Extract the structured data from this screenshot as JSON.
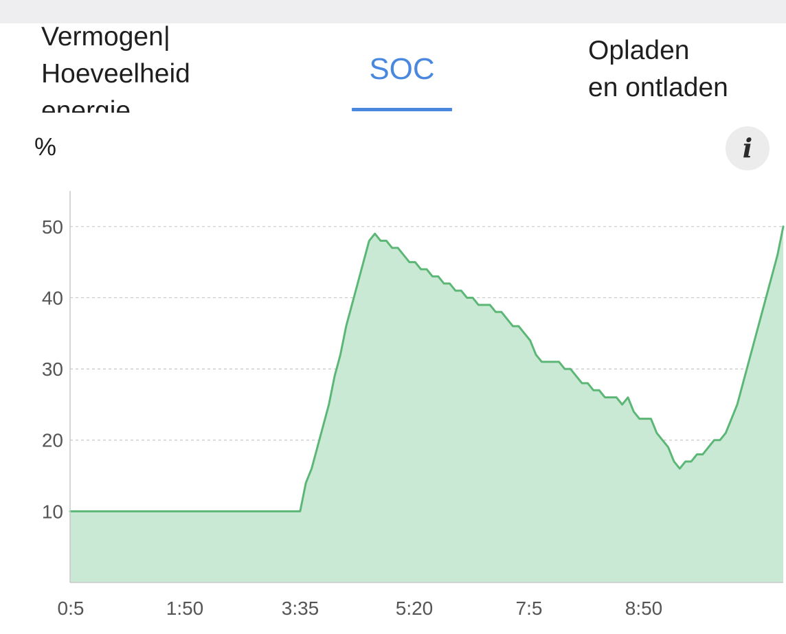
{
  "tabs": [
    {
      "label": "Vermogen|\nHoeveelheid\nenergie",
      "active": false
    },
    {
      "label": "SOC",
      "active": true
    },
    {
      "label": "Opladen\nen ontladen",
      "active": false
    }
  ],
  "unit": "%",
  "info_icon": "info-icon",
  "colors": {
    "active_tab": "#4a88e0",
    "line": "#5cb776",
    "area": "#c9e9d4",
    "grid": "#c8c8c8"
  },
  "chart_data": {
    "type": "area",
    "title": "",
    "xlabel": "",
    "ylabel": "%",
    "x_tick_labels": [
      "0:5",
      "1:50",
      "3:35",
      "5:20",
      "7:5",
      "8:50"
    ],
    "y_ticks": [
      10,
      20,
      30,
      40,
      50
    ],
    "ylim": [
      0,
      55
    ],
    "grid": "horizontal dashed",
    "series": [
      {
        "values": [
          10,
          10,
          10,
          10,
          10,
          10,
          10,
          10,
          10,
          10,
          10,
          10,
          10,
          10,
          10,
          10,
          10,
          10,
          10,
          10,
          10,
          10,
          10,
          10,
          10,
          10,
          10,
          10,
          10,
          10,
          10,
          10,
          10,
          10,
          10,
          10,
          10,
          10,
          10,
          10,
          10,
          14,
          16,
          19,
          22,
          25,
          29,
          32,
          36,
          39,
          42,
          45,
          48,
          49,
          48,
          48,
          47,
          47,
          46,
          45,
          45,
          44,
          44,
          43,
          43,
          42,
          42,
          41,
          41,
          40,
          40,
          39,
          39,
          39,
          38,
          38,
          37,
          36,
          36,
          35,
          34,
          32,
          31,
          31,
          31,
          31,
          30,
          30,
          29,
          28,
          28,
          27,
          27,
          26,
          26,
          26,
          25,
          26,
          24,
          23,
          23,
          23,
          21,
          20,
          19,
          17,
          16,
          17,
          17,
          18,
          18,
          19,
          20,
          20,
          21,
          23,
          25,
          28,
          31,
          34,
          37,
          40,
          43,
          46,
          50
        ]
      }
    ]
  }
}
